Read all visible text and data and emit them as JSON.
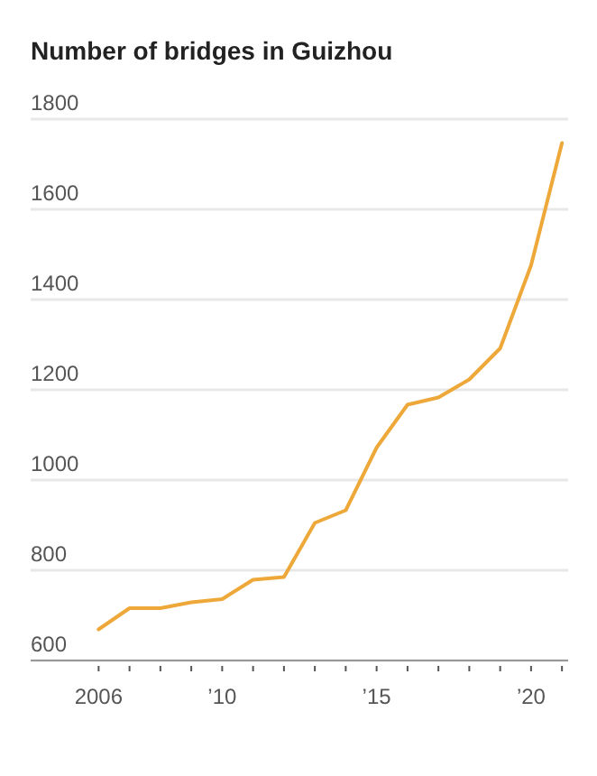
{
  "chart_data": {
    "type": "line",
    "title": "Number of bridges in Guizhou",
    "x": [
      2006,
      2007,
      2008,
      2009,
      2010,
      2011,
      2012,
      2013,
      2014,
      2015,
      2016,
      2017,
      2018,
      2019,
      2020,
      2021
    ],
    "series": [
      {
        "color": "#eea83a",
        "values": [
          669,
          716,
          716,
          729,
          736,
          779,
          785,
          905,
          933,
          1072,
          1167,
          1183,
          1223,
          1292,
          1476,
          1747
        ]
      }
    ],
    "xlim": [
      2003.8,
      2021.2
    ],
    "xticks": [
      {
        "value": 2006,
        "label": "2006"
      },
      {
        "value": 2007,
        "label": null
      },
      {
        "value": 2008,
        "label": null
      },
      {
        "value": 2009,
        "label": null
      },
      {
        "value": 2010,
        "label": "’10"
      },
      {
        "value": 2011,
        "label": null
      },
      {
        "value": 2012,
        "label": null
      },
      {
        "value": 2013,
        "label": null
      },
      {
        "value": 2014,
        "label": null
      },
      {
        "value": 2015,
        "label": "’15"
      },
      {
        "value": 2016,
        "label": null
      },
      {
        "value": 2017,
        "label": null
      },
      {
        "value": 2018,
        "label": null
      },
      {
        "value": 2019,
        "label": null
      },
      {
        "value": 2020,
        "label": "’20"
      },
      {
        "value": 2021,
        "label": null
      }
    ],
    "ylim": [
      600,
      1800
    ],
    "yticks": [
      600,
      800,
      1000,
      1200,
      1400,
      1600,
      1800
    ],
    "grid": "y",
    "marker": "none",
    "line_style": "solid"
  }
}
